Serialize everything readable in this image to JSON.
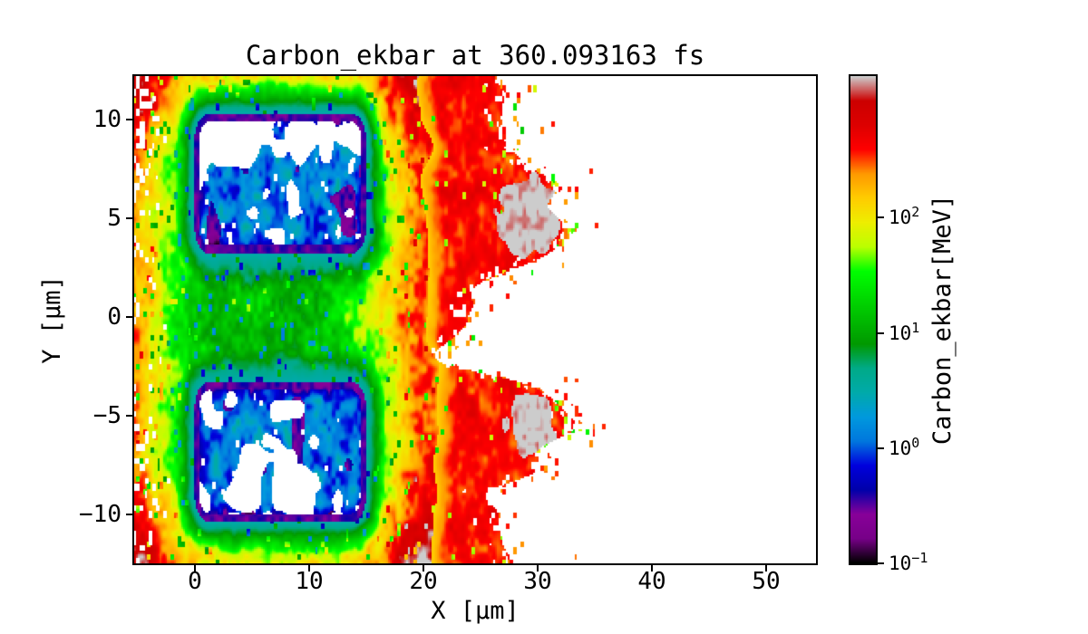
{
  "chart_data": {
    "type": "heatmap",
    "title": "Carbon_ekbar at 360.093163 fs",
    "quantity": "Carbon_ekbar",
    "time_fs": 360.093163,
    "xlabel": "X [μm]",
    "ylabel": "Y [μm]",
    "x_range": [
      -5.3,
      54.4
    ],
    "y_range": [
      -12.5,
      12.2
    ],
    "x_ticks": [
      0,
      10,
      20,
      30,
      40,
      50
    ],
    "y_ticks": [
      -10,
      -5,
      0,
      5,
      10
    ],
    "grid": false,
    "colorbar": {
      "label": "Carbon_ekbar[MeV]",
      "scale": "log",
      "vmin": 0.1,
      "vmax": 1700,
      "colormap": "nipy_spectral",
      "ticks": [
        {
          "base": "10",
          "exp": "−1",
          "value": 0.1
        },
        {
          "base": "10",
          "exp": "0",
          "value": 1
        },
        {
          "base": "10",
          "exp": "1",
          "value": 10
        },
        {
          "base": "10",
          "exp": "2",
          "value": 100
        }
      ]
    },
    "features": {
      "description": "Pixelated 2D mean-kinetic-energy map of carbon ions from a laser-plasma simulation. Two square target blocks show as low-energy cyan/blue regions with dark indigo borders on a green ambient background; orange/yellow sheaths line the left, top and bottom edges; a jagged high-energy red front with gray saturated lobes extends to x≈33 μm; the region beyond is empty (white).",
      "regions": [
        {
          "name": "upper-target-block",
          "x_um": [
            0,
            15
          ],
          "y_um": [
            3.2,
            10.2
          ],
          "typical_MeV": 1.5,
          "appearance": "cyan/blue, dark indigo border, white gaps"
        },
        {
          "name": "lower-target-block",
          "x_um": [
            0,
            15
          ],
          "y_um": [
            -10.3,
            -3.3
          ],
          "typical_MeV": 1.5,
          "appearance": "cyan/blue, dark indigo border, white gaps"
        },
        {
          "name": "ambient-plasma",
          "x_um": [
            -5.3,
            20
          ],
          "y_um": [
            -12.5,
            12.2
          ],
          "typical_MeV": 15,
          "appearance": "green speckle"
        },
        {
          "name": "left-edge-sheath",
          "x_um": [
            -5.3,
            -2
          ],
          "typical_MeV": 200,
          "appearance": "orange/yellow vertical band"
        },
        {
          "name": "edge-sheath-top-bottom",
          "y_um": [
            11,
            12.2
          ],
          "typical_MeV": 70,
          "appearance": "yellow band"
        },
        {
          "name": "acceleration-front",
          "x_um": [
            17,
            21
          ],
          "typical_MeV": 120,
          "appearance": "yellow-orange vertical band"
        },
        {
          "name": "high-energy-front",
          "x_um": [
            21,
            33
          ],
          "typical_MeV": 450,
          "appearance": "red, jagged right edge, detached specks"
        },
        {
          "name": "saturated-lobe-upper",
          "center_um": [
            29.2,
            5.0
          ],
          "typical_MeV": 1500,
          "appearance": "gray"
        },
        {
          "name": "saturated-lobe-lower",
          "center_um": [
            29.5,
            -5.5
          ],
          "typical_MeV": 1500,
          "appearance": "gray"
        },
        {
          "name": "vacuum",
          "x_um": [
            33,
            54.4
          ],
          "typical_MeV": null,
          "appearance": "white"
        }
      ]
    }
  }
}
